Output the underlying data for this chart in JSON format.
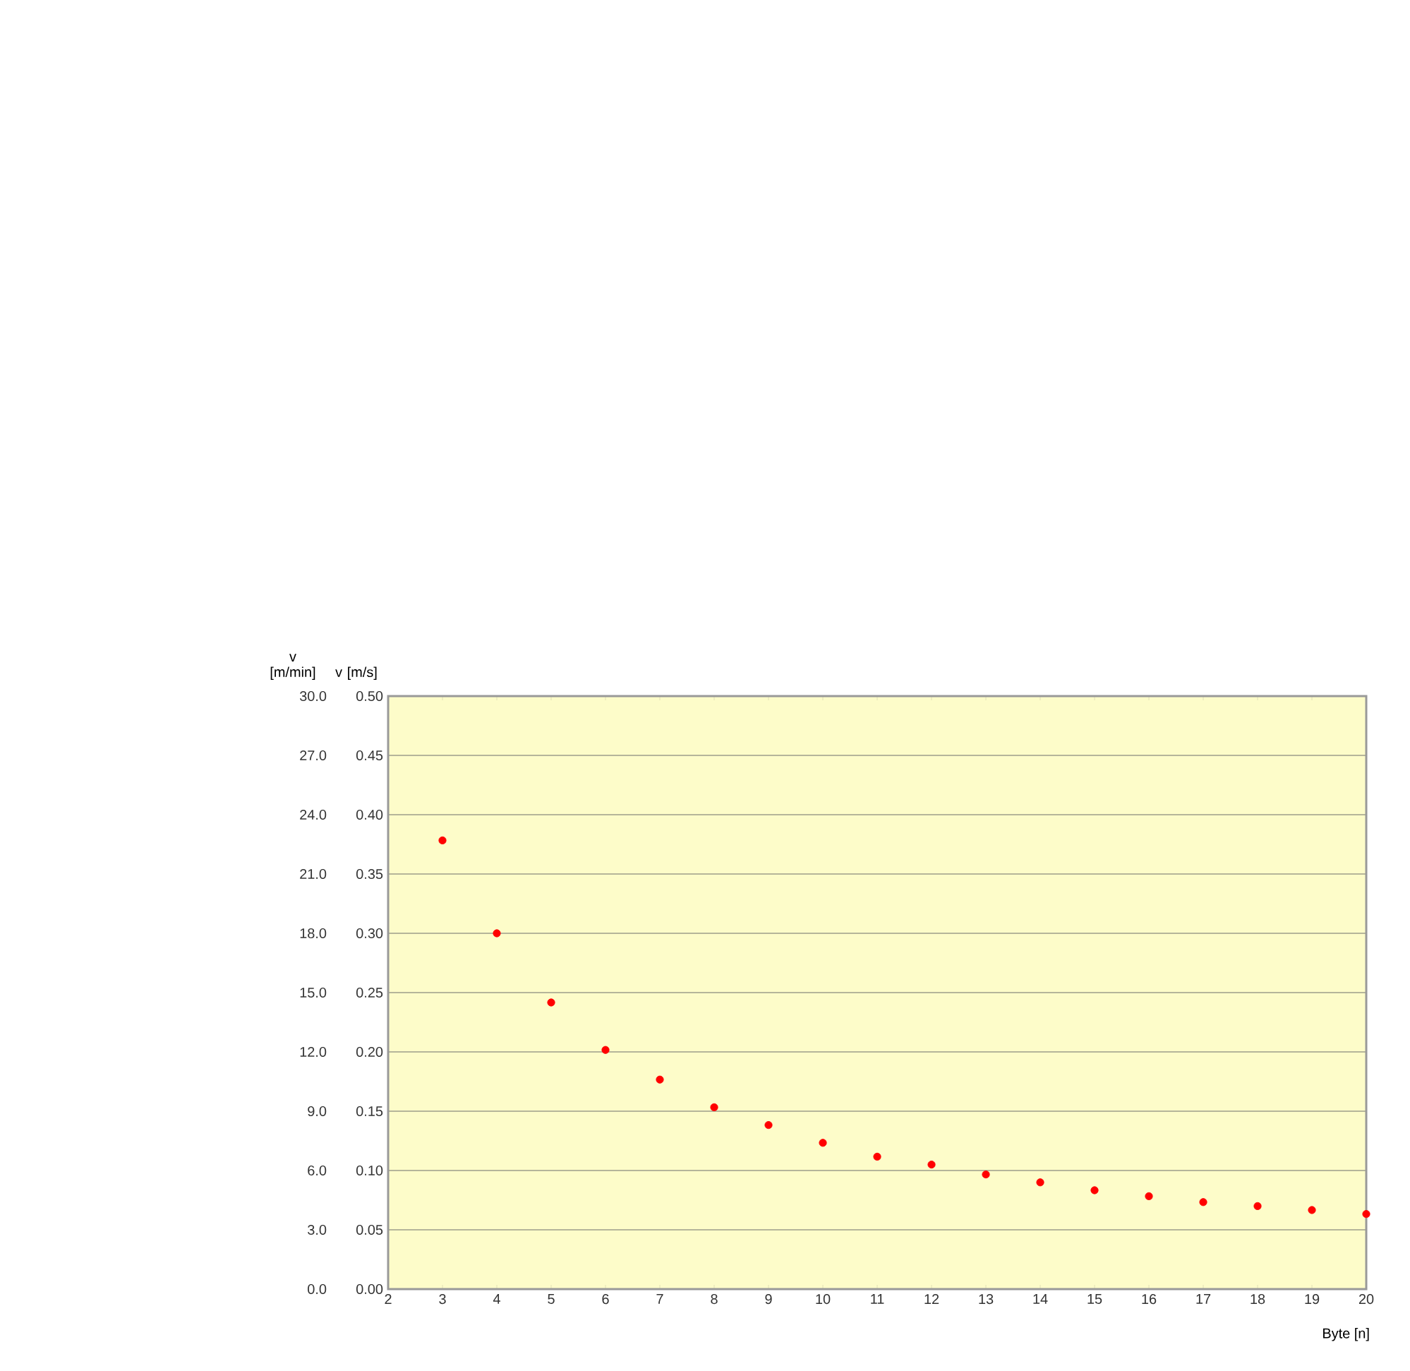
{
  "chart_data": {
    "type": "scatter",
    "xlabel": "Byte [n]",
    "ylabel": "v [m/min]",
    "y2label": "v [m/s]",
    "x": [
      3,
      4,
      5,
      6,
      7,
      8,
      9,
      10,
      11,
      12,
      13,
      14,
      15,
      16,
      17,
      18,
      19,
      20
    ],
    "series": [
      {
        "color": "#ff0000",
        "values": [
          22.7,
          18.0,
          14.5,
          12.1,
          10.6,
          9.2,
          8.3,
          7.4,
          6.7,
          6.3,
          5.8,
          5.4,
          5.0,
          4.7,
          4.4,
          4.2,
          4.0,
          3.8
        ]
      }
    ],
    "xlim": [
      2,
      20
    ],
    "xticks": [
      2,
      3,
      4,
      5,
      6,
      7,
      8,
      9,
      10,
      11,
      12,
      13,
      14,
      15,
      16,
      17,
      18,
      19,
      20
    ],
    "ylim": [
      0,
      30
    ],
    "yticks": [
      {
        "value": 0,
        "label": "0.0"
      },
      {
        "value": 3,
        "label": "3.0"
      },
      {
        "value": 6,
        "label": "6.0"
      },
      {
        "value": 9,
        "label": "9.0"
      },
      {
        "value": 12,
        "label": "12.0"
      },
      {
        "value": 15,
        "label": "15.0"
      },
      {
        "value": 18,
        "label": "18.0"
      },
      {
        "value": 21,
        "label": "21.0"
      },
      {
        "value": 24,
        "label": "24.0"
      },
      {
        "value": 27,
        "label": "27.0"
      },
      {
        "value": 30,
        "label": "30.0"
      }
    ],
    "y2lim": [
      0,
      0.5
    ],
    "y2ticks": [
      {
        "value": 0,
        "label": "0.00"
      },
      0.05,
      {
        "value": 0.1,
        "label": "0.10"
      },
      0.15,
      {
        "value": 0.2,
        "label": "0.20"
      },
      0.25,
      {
        "value": 0.3,
        "label": "0.30"
      },
      0.35,
      {
        "value": 0.4,
        "label": "0.40"
      },
      0.45,
      {
        "value": 0.5,
        "label": "0.50"
      }
    ],
    "grid": "y",
    "marker": "circle"
  }
}
